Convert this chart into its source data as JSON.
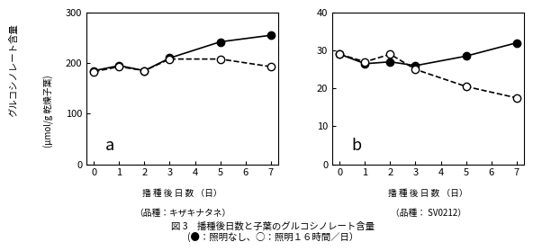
{
  "panel_a": {
    "label": "a",
    "solid_x": [
      0,
      1,
      2,
      3,
      5,
      7
    ],
    "solid_y": [
      185,
      195,
      185,
      210,
      242,
      255
    ],
    "dashed_x": [
      0,
      1,
      2,
      3,
      5,
      7
    ],
    "dashed_y": [
      183,
      193,
      185,
      208,
      208,
      193
    ],
    "ylim": [
      0,
      300
    ],
    "yticks": [
      0,
      100,
      200,
      300
    ],
    "xticks": [
      0,
      1,
      2,
      3,
      4,
      5,
      6,
      7
    ],
    "xlabel": "播 種 後 日 数 （日）",
    "xlabel2": "（品種：キザキナタネ）",
    "ylabel": "グルコシノレート含量",
    "ylabel2": "(μmol/g 乾燥子葉)"
  },
  "panel_b": {
    "label": "b",
    "solid_x": [
      0,
      1,
      2,
      3,
      5,
      7
    ],
    "solid_y": [
      29,
      26.5,
      27,
      26,
      28.5,
      32
    ],
    "dashed_x": [
      0,
      1,
      2,
      3,
      5,
      7
    ],
    "dashed_y": [
      29,
      27,
      29,
      25,
      20.5,
      17.5
    ],
    "ylim": [
      0,
      40
    ],
    "yticks": [
      0,
      10,
      20,
      30,
      40
    ],
    "xticks": [
      0,
      1,
      2,
      3,
      4,
      5,
      6,
      7
    ],
    "xlabel": "播 種 後 日 数 （日）",
    "xlabel2": "（品種： SV0212）"
  },
  "caption_line1": "図 3　播種後日数と子葉のグルコシノレート含量",
  "caption_line2": "(●：照明なし、○：照明１６時間／日）",
  "marker_size": 6,
  "line_width": 1.2
}
